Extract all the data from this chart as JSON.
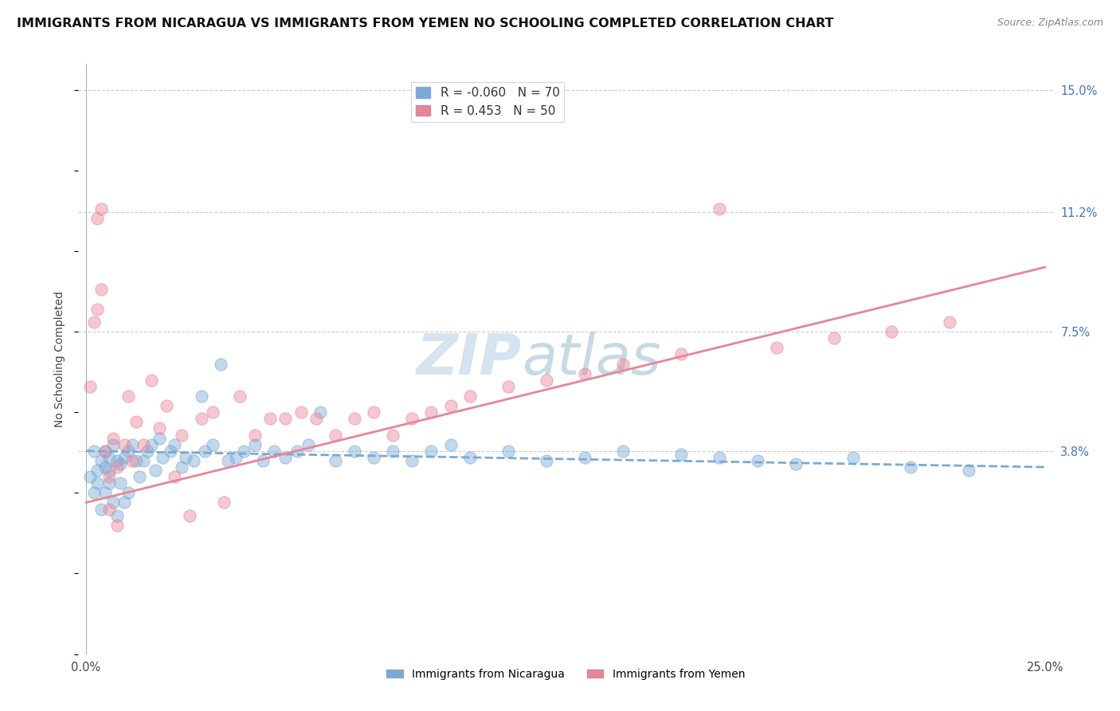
{
  "title": "IMMIGRANTS FROM NICARAGUA VS IMMIGRANTS FROM YEMEN NO SCHOOLING COMPLETED CORRELATION CHART",
  "source": "Source: ZipAtlas.com",
  "xlabel": "",
  "ylabel": "No Schooling Completed",
  "xlim": [
    -0.002,
    0.252
  ],
  "ylim": [
    -0.025,
    0.158
  ],
  "ytick_positions": [
    0.038,
    0.075,
    0.112,
    0.15
  ],
  "ytick_labels": [
    "3.8%",
    "7.5%",
    "11.2%",
    "15.0%"
  ],
  "series": [
    {
      "name": "Immigrants from Nicaragua",
      "color": "#7aaad4",
      "R": -0.06,
      "N": 70,
      "x": [
        0.001,
        0.002,
        0.002,
        0.003,
        0.003,
        0.004,
        0.004,
        0.005,
        0.005,
        0.005,
        0.006,
        0.006,
        0.006,
        0.007,
        0.007,
        0.008,
        0.008,
        0.009,
        0.009,
        0.01,
        0.01,
        0.011,
        0.011,
        0.012,
        0.013,
        0.014,
        0.015,
        0.016,
        0.017,
        0.018,
        0.019,
        0.02,
        0.022,
        0.023,
        0.025,
        0.026,
        0.028,
        0.03,
        0.031,
        0.033,
        0.035,
        0.037,
        0.039,
        0.041,
        0.044,
        0.046,
        0.049,
        0.052,
        0.055,
        0.058,
        0.061,
        0.065,
        0.07,
        0.075,
        0.08,
        0.085,
        0.09,
        0.095,
        0.1,
        0.11,
        0.12,
        0.13,
        0.14,
        0.155,
        0.165,
        0.175,
        0.185,
        0.2,
        0.215,
        0.23
      ],
      "y": [
        0.03,
        0.025,
        0.038,
        0.032,
        0.028,
        0.035,
        0.02,
        0.033,
        0.038,
        0.025,
        0.036,
        0.028,
        0.032,
        0.04,
        0.022,
        0.035,
        0.018,
        0.034,
        0.028,
        0.036,
        0.022,
        0.038,
        0.025,
        0.04,
        0.035,
        0.03,
        0.035,
        0.038,
        0.04,
        0.032,
        0.042,
        0.036,
        0.038,
        0.04,
        0.033,
        0.036,
        0.035,
        0.055,
        0.038,
        0.04,
        0.065,
        0.035,
        0.036,
        0.038,
        0.04,
        0.035,
        0.038,
        0.036,
        0.038,
        0.04,
        0.05,
        0.035,
        0.038,
        0.036,
        0.038,
        0.035,
        0.038,
        0.04,
        0.036,
        0.038,
        0.035,
        0.036,
        0.038,
        0.037,
        0.036,
        0.035,
        0.034,
        0.036,
        0.033,
        0.032
      ],
      "trend_x": [
        0.0,
        0.25
      ],
      "trend_y": [
        0.038,
        0.033
      ],
      "linestyle": "dashed"
    },
    {
      "name": "Immigrants from Yemen",
      "color": "#e8859a",
      "R": 0.453,
      "N": 50,
      "x": [
        0.001,
        0.002,
        0.003,
        0.004,
        0.005,
        0.006,
        0.007,
        0.008,
        0.01,
        0.011,
        0.012,
        0.013,
        0.015,
        0.017,
        0.019,
        0.021,
        0.023,
        0.025,
        0.027,
        0.03,
        0.033,
        0.036,
        0.04,
        0.044,
        0.048,
        0.052,
        0.056,
        0.06,
        0.065,
        0.07,
        0.075,
        0.08,
        0.085,
        0.09,
        0.095,
        0.1,
        0.11,
        0.12,
        0.13,
        0.14,
        0.155,
        0.165,
        0.18,
        0.195,
        0.21,
        0.225,
        0.003,
        0.004,
        0.006,
        0.008
      ],
      "y": [
        0.058,
        0.078,
        0.11,
        0.113,
        0.038,
        0.03,
        0.042,
        0.033,
        0.04,
        0.055,
        0.035,
        0.047,
        0.04,
        0.06,
        0.045,
        0.052,
        0.03,
        0.043,
        0.018,
        0.048,
        0.05,
        0.022,
        0.055,
        0.043,
        0.048,
        0.048,
        0.05,
        0.048,
        0.043,
        0.048,
        0.05,
        0.043,
        0.048,
        0.05,
        0.052,
        0.055,
        0.058,
        0.06,
        0.062,
        0.065,
        0.068,
        0.113,
        0.07,
        0.073,
        0.075,
        0.078,
        0.082,
        0.088,
        0.02,
        0.015
      ],
      "trend_x": [
        0.0,
        0.25
      ],
      "trend_y": [
        0.022,
        0.095
      ],
      "linestyle": "solid"
    }
  ],
  "watermark_text": "ZIPatlas",
  "watermark_color": "#c8d8e8",
  "bg_color": "#ffffff",
  "grid_color": "#cccccc",
  "title_fontsize": 11.5,
  "source_fontsize": 9,
  "axis_label_fontsize": 10,
  "tick_fontsize": 10.5,
  "legend_fontsize": 11,
  "scatter_size": 120,
  "scatter_alpha": 0.45,
  "scatter_linewidth": 1.0
}
